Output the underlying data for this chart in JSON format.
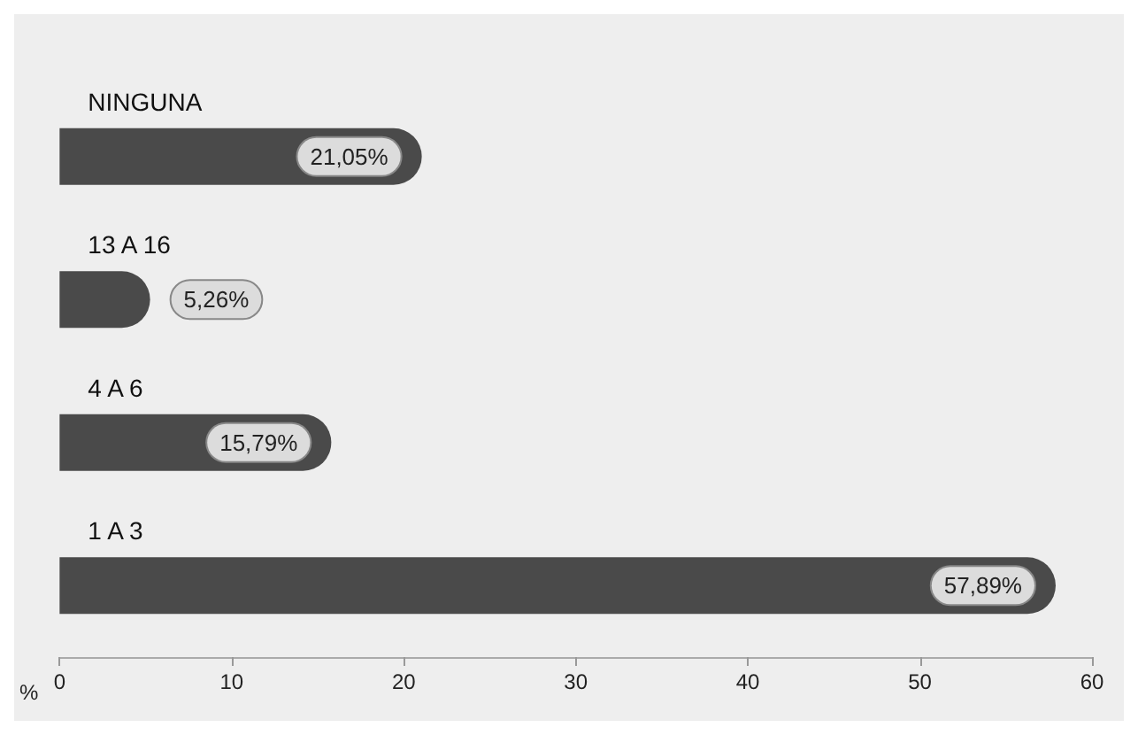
{
  "chart_data": {
    "type": "bar",
    "orientation": "horizontal",
    "categories": [
      "NINGUNA",
      "13 A 16",
      "4 A 6",
      "1 A 3"
    ],
    "values": [
      21.05,
      5.26,
      15.79,
      57.89
    ],
    "value_labels": [
      "21,05%",
      "5,26%",
      "15,79%",
      "57,89%"
    ],
    "color": "#4a4a4a",
    "xlabel": "%",
    "xlim": [
      0,
      60
    ],
    "xticks": [
      0,
      10,
      20,
      30,
      40,
      50,
      60
    ],
    "grid": false
  }
}
